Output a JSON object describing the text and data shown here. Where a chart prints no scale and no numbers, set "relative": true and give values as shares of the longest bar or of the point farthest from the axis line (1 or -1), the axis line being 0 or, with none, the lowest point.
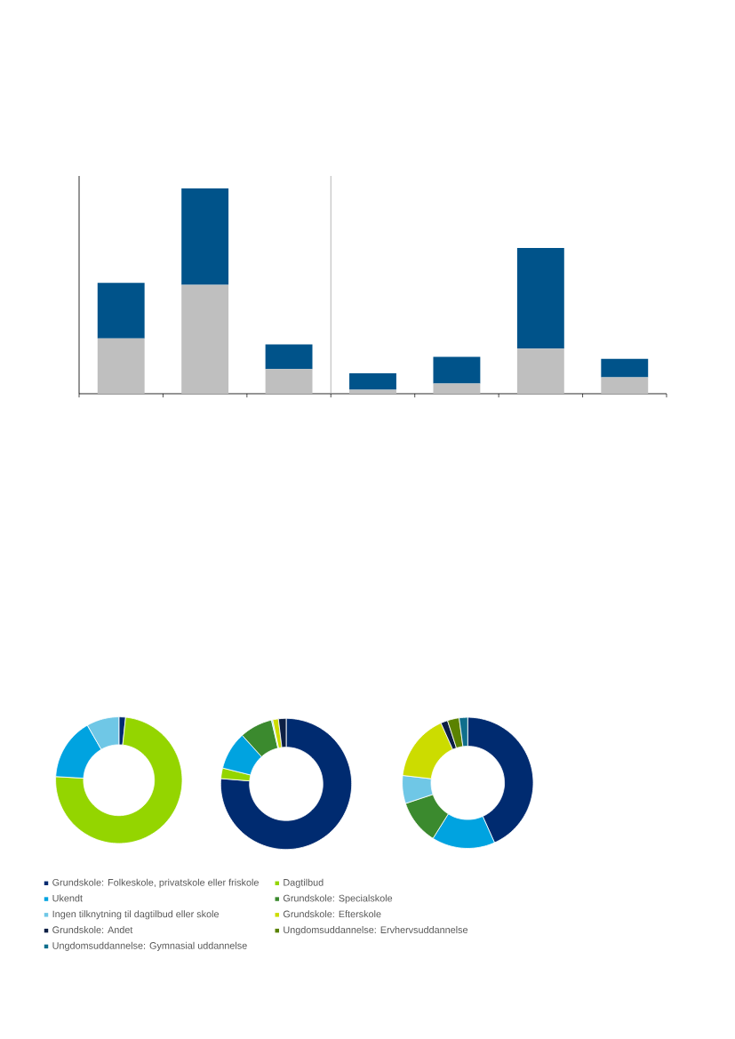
{
  "chart_data": [
    {
      "type": "bar",
      "stacked": true,
      "relative": true,
      "categories": [
        null,
        null,
        null,
        null,
        null,
        null,
        null
      ],
      "series": [
        {
          "color": "#bfbfbf",
          "values": [
            0.27,
            0.53,
            0.12,
            0.02,
            0.05,
            0.22,
            0.08
          ]
        },
        {
          "color": "#00538a",
          "values": [
            0.27,
            0.47,
            0.12,
            0.08,
            0.13,
            0.49,
            0.09
          ]
        }
      ]
    },
    {
      "type": "donut",
      "categories": [
        null,
        null,
        null,
        null
      ],
      "values": [
        1.7,
        74.2,
        15.8,
        8.3
      ],
      "colors": [
        "#002b70",
        "#94d500",
        "#00a3e0",
        "#6fc7e6"
      ]
    },
    {
      "type": "donut",
      "categories": [
        null,
        null,
        null,
        null,
        null,
        null,
        null
      ],
      "values": [
        76.3,
        2.6,
        9.4,
        8.1,
        0.3,
        1.4,
        1.9
      ],
      "colors": [
        "#002b70",
        "#94d500",
        "#00a3e0",
        "#3b8a2e",
        "#6fc7e6",
        "#ccdc00",
        "#0c1f44"
      ]
    },
    {
      "type": "donut",
      "categories": [
        "Grundskole: Folkeskole, privatskole eller friskole",
        "Dagtilbud",
        "Ukendt",
        "Grundskole: Specialskole",
        "Ingen tilknytning til dagtilbud eller skole",
        "Grundskole: Efterskole",
        "Grundskole: Andet",
        "Ungdomsuddannelse: Ervhervsuddannelse",
        "Ungdomsuddannelse: Gymnasial uddannelse"
      ],
      "values": [
        43.3,
        0,
        15.6,
        11.0,
        6.9,
        16.5,
        1.7,
        2.9,
        2.1
      ],
      "colors": [
        "#002b70",
        "#94d500",
        "#00a3e0",
        "#3b8a2e",
        "#6fc7e6",
        "#ccdc00",
        "#0c1f44",
        "#5a8200",
        "#0f6e8c"
      ],
      "legend": "bottom"
    }
  ]
}
